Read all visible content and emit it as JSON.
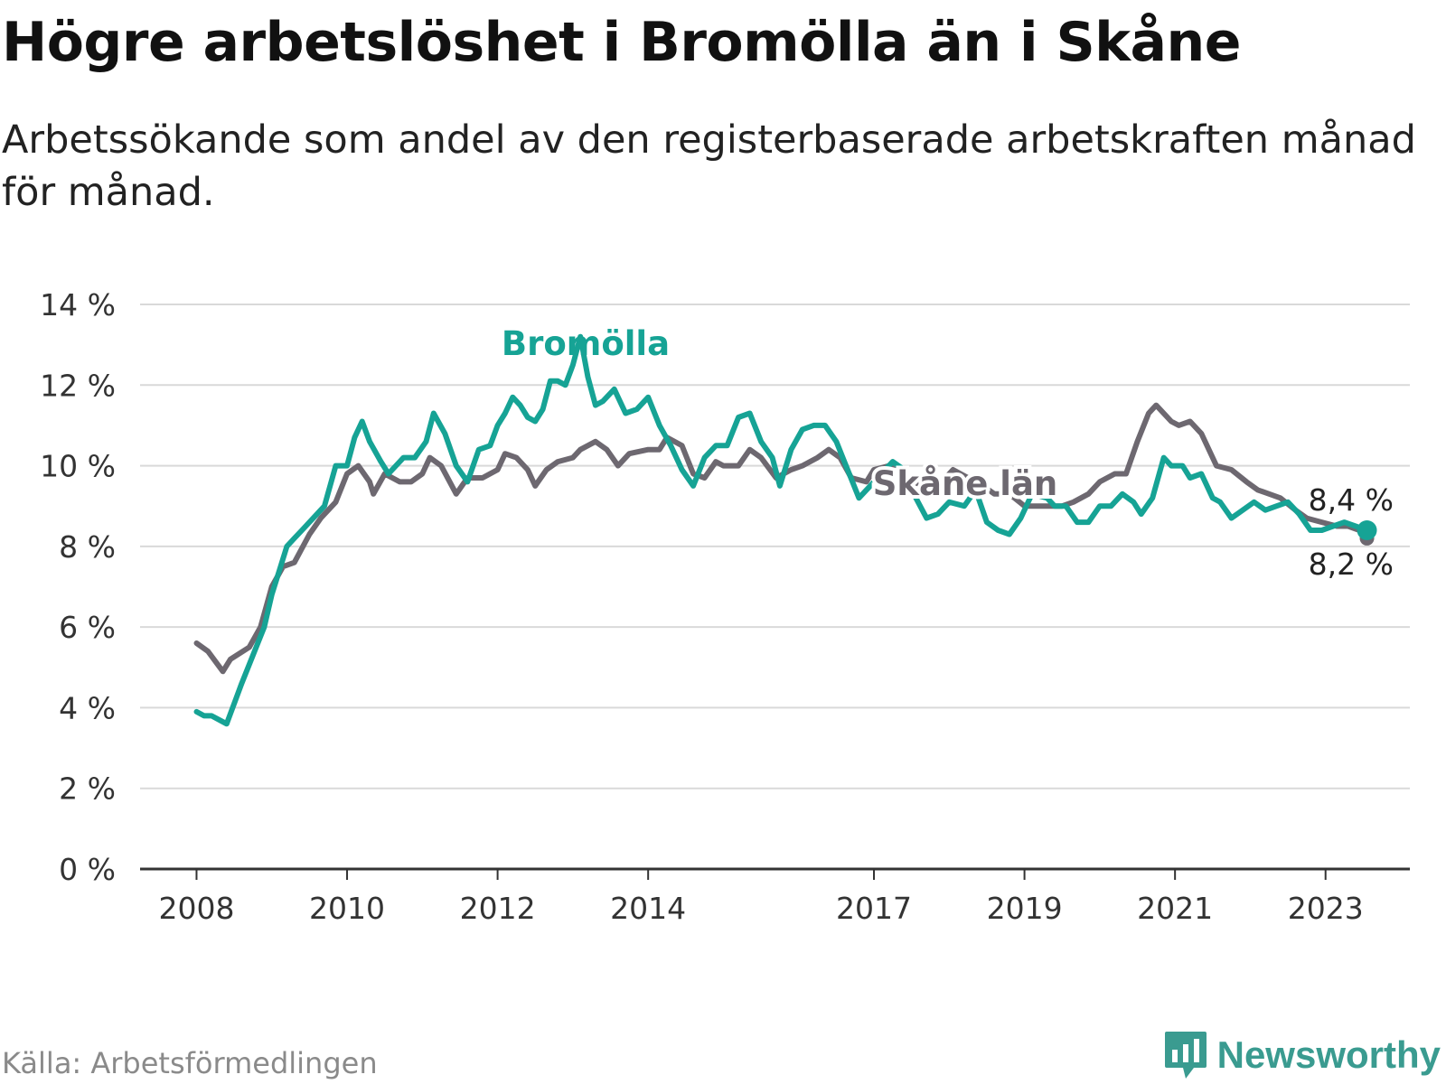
{
  "title": "Högre arbetslöshet i Bromölla än i Skåne",
  "subtitle": "Arbetssökande som andel av den registerbaserade arbetskraften månad för månad.",
  "source": "Källa: Arbetsförmedlingen",
  "brand": "Newsworthy",
  "colors": {
    "bromolla": "#16a395",
    "skane": "#6d6870",
    "grid": "#d9d9d9",
    "axis": "#333333",
    "brand": "#3a9b90"
  },
  "chart_data": {
    "type": "line",
    "title": "Högre arbetslöshet i Bromölla än i Skåne",
    "xlabel": "",
    "ylabel": "",
    "ylim": [
      0,
      14
    ],
    "xlim": [
      2007.25,
      2024.12
    ],
    "yticks": [
      0,
      2,
      4,
      6,
      8,
      10,
      12,
      14
    ],
    "ytick_labels": [
      "0 %",
      "2 %",
      "4 %",
      "6 %",
      "8 %",
      "10 %",
      "12 %",
      "14 %"
    ],
    "xticks": [
      2008,
      2010,
      2012,
      2014,
      2017,
      2019,
      2021,
      2023
    ],
    "xtick_labels": [
      "2008",
      "2010",
      "2012",
      "2014",
      "2017",
      "2019",
      "2021",
      "2023"
    ],
    "series": [
      {
        "name": "Skåne län",
        "label": "Skåne län",
        "color": "#6d6870",
        "end_label": "8,2 %",
        "points": [
          [
            2008.0,
            5.6
          ],
          [
            2008.15,
            5.4
          ],
          [
            2008.35,
            4.9
          ],
          [
            2008.45,
            5.2
          ],
          [
            2008.7,
            5.5
          ],
          [
            2008.85,
            6.0
          ],
          [
            2009.0,
            7.0
          ],
          [
            2009.15,
            7.5
          ],
          [
            2009.3,
            7.6
          ],
          [
            2009.5,
            8.3
          ],
          [
            2009.65,
            8.7
          ],
          [
            2009.85,
            9.1
          ],
          [
            2010.0,
            9.8
          ],
          [
            2010.15,
            10.0
          ],
          [
            2010.3,
            9.6
          ],
          [
            2010.35,
            9.3
          ],
          [
            2010.5,
            9.8
          ],
          [
            2010.7,
            9.6
          ],
          [
            2010.85,
            9.6
          ],
          [
            2011.0,
            9.8
          ],
          [
            2011.1,
            10.2
          ],
          [
            2011.25,
            10.0
          ],
          [
            2011.45,
            9.3
          ],
          [
            2011.6,
            9.7
          ],
          [
            2011.8,
            9.7
          ],
          [
            2012.0,
            9.9
          ],
          [
            2012.1,
            10.3
          ],
          [
            2012.25,
            10.2
          ],
          [
            2012.4,
            9.9
          ],
          [
            2012.5,
            9.5
          ],
          [
            2012.65,
            9.9
          ],
          [
            2012.8,
            10.1
          ],
          [
            2013.0,
            10.2
          ],
          [
            2013.1,
            10.4
          ],
          [
            2013.3,
            10.6
          ],
          [
            2013.45,
            10.4
          ],
          [
            2013.6,
            10.0
          ],
          [
            2013.75,
            10.3
          ],
          [
            2014.0,
            10.4
          ],
          [
            2014.15,
            10.4
          ],
          [
            2014.25,
            10.7
          ],
          [
            2014.45,
            10.5
          ],
          [
            2014.6,
            9.8
          ],
          [
            2014.75,
            9.7
          ],
          [
            2014.9,
            10.1
          ],
          [
            2015.0,
            10.0
          ],
          [
            2015.2,
            10.0
          ],
          [
            2015.35,
            10.4
          ],
          [
            2015.5,
            10.2
          ],
          [
            2015.7,
            9.7
          ],
          [
            2015.9,
            9.9
          ],
          [
            2016.05,
            10.0
          ],
          [
            2016.25,
            10.2
          ],
          [
            2016.4,
            10.4
          ],
          [
            2016.55,
            10.2
          ],
          [
            2016.7,
            9.7
          ],
          [
            2016.9,
            9.6
          ],
          [
            2017.0,
            9.9
          ],
          [
            2017.2,
            10.0
          ],
          [
            2017.35,
            9.8
          ],
          [
            2017.5,
            9.6
          ],
          [
            2017.7,
            9.5
          ],
          [
            2017.9,
            9.6
          ],
          [
            2018.05,
            9.9
          ],
          [
            2018.25,
            9.7
          ],
          [
            2018.45,
            9.5
          ],
          [
            2018.6,
            9.3
          ],
          [
            2018.8,
            9.3
          ],
          [
            2019.0,
            9.0
          ],
          [
            2019.2,
            9.0
          ],
          [
            2019.35,
            9.0
          ],
          [
            2019.5,
            9.0
          ],
          [
            2019.65,
            9.1
          ],
          [
            2019.85,
            9.3
          ],
          [
            2020.0,
            9.6
          ],
          [
            2020.2,
            9.8
          ],
          [
            2020.35,
            9.8
          ],
          [
            2020.5,
            10.6
          ],
          [
            2020.65,
            11.3
          ],
          [
            2020.75,
            11.5
          ],
          [
            2020.95,
            11.1
          ],
          [
            2021.05,
            11.0
          ],
          [
            2021.2,
            11.1
          ],
          [
            2021.35,
            10.8
          ],
          [
            2021.55,
            10.0
          ],
          [
            2021.75,
            9.9
          ],
          [
            2021.95,
            9.6
          ],
          [
            2022.1,
            9.4
          ],
          [
            2022.25,
            9.3
          ],
          [
            2022.4,
            9.2
          ],
          [
            2022.6,
            8.9
          ],
          [
            2022.75,
            8.7
          ],
          [
            2022.95,
            8.6
          ],
          [
            2023.15,
            8.5
          ],
          [
            2023.3,
            8.5
          ],
          [
            2023.45,
            8.4
          ],
          [
            2023.55,
            8.2
          ]
        ]
      },
      {
        "name": "Bromölla",
        "label": "Bromölla",
        "color": "#16a395",
        "end_label": "8,4 %",
        "points": [
          [
            2008.0,
            3.9
          ],
          [
            2008.1,
            3.8
          ],
          [
            2008.2,
            3.8
          ],
          [
            2008.3,
            3.7
          ],
          [
            2008.4,
            3.6
          ],
          [
            2008.6,
            4.6
          ],
          [
            2008.75,
            5.3
          ],
          [
            2008.9,
            6.0
          ],
          [
            2009.0,
            6.8
          ],
          [
            2009.1,
            7.4
          ],
          [
            2009.2,
            8.0
          ],
          [
            2009.3,
            8.2
          ],
          [
            2009.4,
            8.4
          ],
          [
            2009.55,
            8.7
          ],
          [
            2009.7,
            9.0
          ],
          [
            2009.85,
            10.0
          ],
          [
            2010.0,
            10.0
          ],
          [
            2010.1,
            10.7
          ],
          [
            2010.2,
            11.1
          ],
          [
            2010.3,
            10.6
          ],
          [
            2010.45,
            10.1
          ],
          [
            2010.55,
            9.8
          ],
          [
            2010.75,
            10.2
          ],
          [
            2010.9,
            10.2
          ],
          [
            2011.05,
            10.6
          ],
          [
            2011.15,
            11.3
          ],
          [
            2011.3,
            10.8
          ],
          [
            2011.45,
            10.0
          ],
          [
            2011.6,
            9.6
          ],
          [
            2011.75,
            10.4
          ],
          [
            2011.9,
            10.5
          ],
          [
            2012.0,
            11.0
          ],
          [
            2012.1,
            11.3
          ],
          [
            2012.2,
            11.7
          ],
          [
            2012.3,
            11.5
          ],
          [
            2012.4,
            11.2
          ],
          [
            2012.5,
            11.1
          ],
          [
            2012.6,
            11.4
          ],
          [
            2012.7,
            12.1
          ],
          [
            2012.8,
            12.1
          ],
          [
            2012.9,
            12.0
          ],
          [
            2013.0,
            12.5
          ],
          [
            2013.1,
            13.2
          ],
          [
            2013.2,
            12.2
          ],
          [
            2013.3,
            11.5
          ],
          [
            2013.4,
            11.6
          ],
          [
            2013.55,
            11.9
          ],
          [
            2013.7,
            11.3
          ],
          [
            2013.85,
            11.4
          ],
          [
            2014.0,
            11.7
          ],
          [
            2014.15,
            11.0
          ],
          [
            2014.3,
            10.5
          ],
          [
            2014.45,
            9.9
          ],
          [
            2014.6,
            9.5
          ],
          [
            2014.75,
            10.2
          ],
          [
            2014.9,
            10.5
          ],
          [
            2015.05,
            10.5
          ],
          [
            2015.2,
            11.2
          ],
          [
            2015.35,
            11.3
          ],
          [
            2015.5,
            10.6
          ],
          [
            2015.65,
            10.2
          ],
          [
            2015.75,
            9.5
          ],
          [
            2015.9,
            10.4
          ],
          [
            2016.05,
            10.9
          ],
          [
            2016.2,
            11.0
          ],
          [
            2016.35,
            11.0
          ],
          [
            2016.5,
            10.6
          ],
          [
            2016.65,
            9.9
          ],
          [
            2016.8,
            9.2
          ],
          [
            2016.95,
            9.5
          ],
          [
            2017.1,
            9.8
          ],
          [
            2017.25,
            10.1
          ],
          [
            2017.4,
            9.9
          ],
          [
            2017.5,
            9.4
          ],
          [
            2017.7,
            8.7
          ],
          [
            2017.85,
            8.8
          ],
          [
            2018.0,
            9.1
          ],
          [
            2018.2,
            9.0
          ],
          [
            2018.35,
            9.4
          ],
          [
            2018.5,
            8.6
          ],
          [
            2018.65,
            8.4
          ],
          [
            2018.8,
            8.3
          ],
          [
            2018.95,
            8.7
          ],
          [
            2019.1,
            9.3
          ],
          [
            2019.3,
            9.2
          ],
          [
            2019.4,
            9.0
          ],
          [
            2019.55,
            9.0
          ],
          [
            2019.7,
            8.6
          ],
          [
            2019.85,
            8.6
          ],
          [
            2020.0,
            9.0
          ],
          [
            2020.15,
            9.0
          ],
          [
            2020.3,
            9.3
          ],
          [
            2020.45,
            9.1
          ],
          [
            2020.55,
            8.8
          ],
          [
            2020.7,
            9.2
          ],
          [
            2020.85,
            10.2
          ],
          [
            2020.95,
            10.0
          ],
          [
            2021.1,
            10.0
          ],
          [
            2021.2,
            9.7
          ],
          [
            2021.35,
            9.8
          ],
          [
            2021.5,
            9.2
          ],
          [
            2021.6,
            9.1
          ],
          [
            2021.75,
            8.7
          ],
          [
            2021.9,
            8.9
          ],
          [
            2022.05,
            9.1
          ],
          [
            2022.2,
            8.9
          ],
          [
            2022.35,
            9.0
          ],
          [
            2022.5,
            9.1
          ],
          [
            2022.65,
            8.8
          ],
          [
            2022.8,
            8.4
          ],
          [
            2022.95,
            8.4
          ],
          [
            2023.1,
            8.5
          ],
          [
            2023.25,
            8.6
          ],
          [
            2023.4,
            8.5
          ],
          [
            2023.55,
            8.4
          ]
        ]
      }
    ]
  }
}
